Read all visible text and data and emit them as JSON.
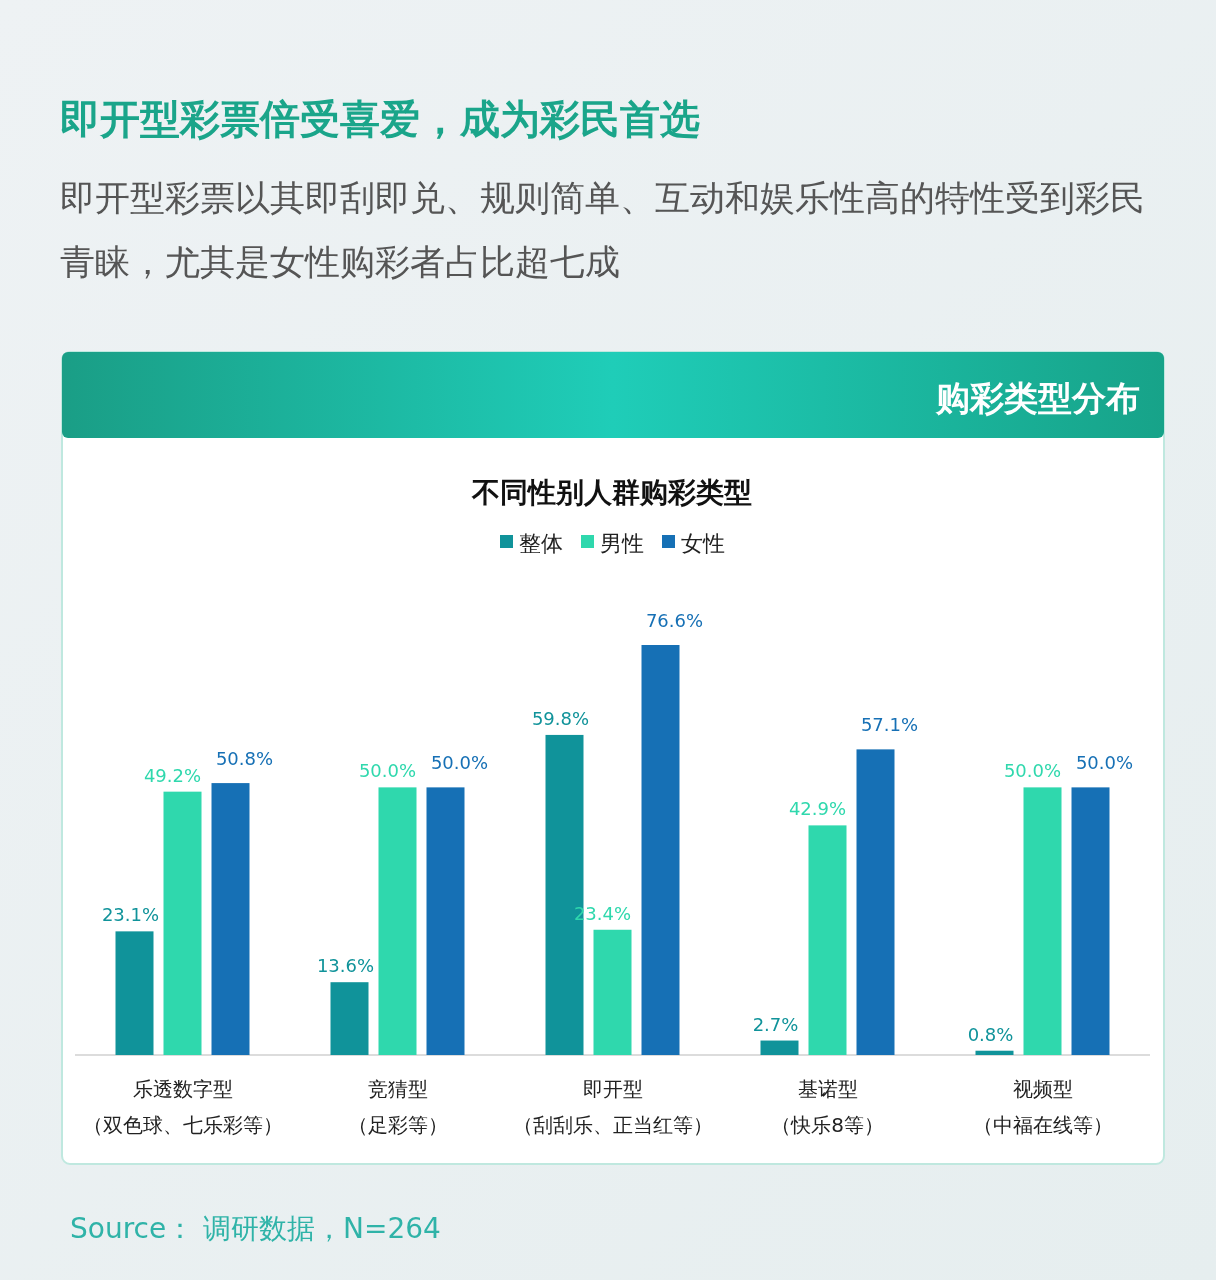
{
  "chart_data": {
    "type": "bar",
    "title": "即开型彩票倍受喜爱，成为彩民首选",
    "subtitle": "即开型彩票以其即刮即兑、规则简单、互动和娱乐性高的特性受到彩民青睐，尤其是女性购彩者占比超七成",
    "annotations": [
      "购彩类型分布",
      "不同性别人群购彩类型",
      "Source： 调研数据，N=264"
    ],
    "categories": [
      "乐透数字型（双色球、七乐彩等）",
      "竞猜型（足彩等）",
      "即开型（刮刮乐、正当红等）",
      "基诺型（快乐8等）",
      "视频型（中福在线等）"
    ],
    "series": [
      {
        "name": "整体",
        "color": "#10939a",
        "values": [
          23.1,
          13.6,
          59.8,
          2.7,
          0.8
        ],
        "value_labels": [
          "23.1%",
          "13.6%",
          "59.8%",
          "2.7%",
          "0.8%"
        ]
      },
      {
        "name": "男性",
        "color": "#2fd8ad",
        "values": [
          49.2,
          50.0,
          23.4,
          42.9,
          50.0
        ],
        "value_labels": [
          "49.2%",
          "50.0%",
          "23.4%",
          "42.9%",
          "50.0%"
        ]
      },
      {
        "name": "女性",
        "color": "#1670b5",
        "values": [
          50.8,
          50.0,
          76.6,
          57.1,
          50.0
        ],
        "value_labels": [
          "50.8%",
          "50.0%",
          "76.6%",
          "57.1%",
          "50.0%"
        ]
      }
    ],
    "legend": "top"
  }
}
